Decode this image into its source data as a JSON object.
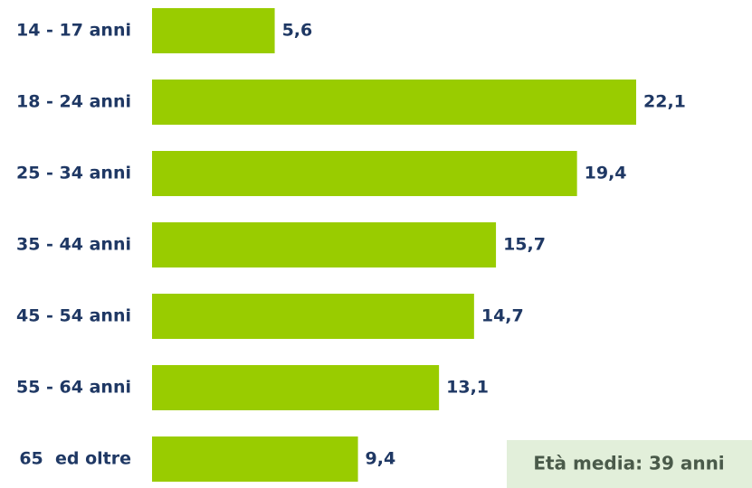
{
  "chart_data": {
    "type": "bar",
    "orientation": "horizontal",
    "categories": [
      "14 - 17 anni",
      "18 - 24 anni",
      "25 - 34 anni",
      "35 - 44 anni",
      "45 - 54 anni",
      "55 - 64 anni",
      "65  ed oltre"
    ],
    "values": [
      5.6,
      22.1,
      19.4,
      15.7,
      14.7,
      13.1,
      9.4
    ],
    "value_labels": [
      "5,6",
      "22,1",
      "19,4",
      "15,7",
      "14,7",
      "13,1",
      "9,4"
    ],
    "color": "#99cc00",
    "annotation": "Età media: 39 anni"
  }
}
